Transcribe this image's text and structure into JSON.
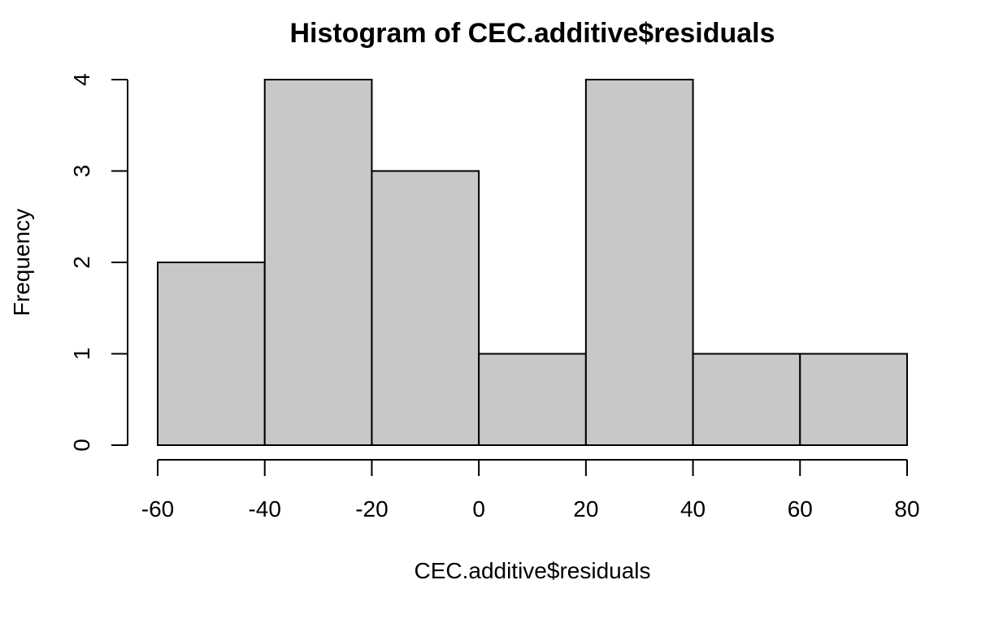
{
  "chart_data": {
    "type": "bar",
    "subtype": "histogram",
    "title": "Histogram of CEC.additive$residuals",
    "xlabel": "CEC.additive$residuals",
    "ylabel": "Frequency",
    "bins": [
      {
        "from": -60,
        "to": -40,
        "count": 2
      },
      {
        "from": -40,
        "to": -20,
        "count": 4
      },
      {
        "from": -20,
        "to": 0,
        "count": 3
      },
      {
        "from": 0,
        "to": 20,
        "count": 1
      },
      {
        "from": 20,
        "to": 40,
        "count": 4
      },
      {
        "from": 40,
        "to": 60,
        "count": 1
      },
      {
        "from": 60,
        "to": 80,
        "count": 1
      }
    ],
    "xlim": [
      -60,
      80
    ],
    "ylim": [
      0,
      4
    ],
    "x_ticks": [
      -60,
      -40,
      -20,
      0,
      20,
      40,
      60,
      80
    ],
    "y_ticks": [
      0,
      1,
      2,
      3,
      4
    ],
    "bar_color": "#c8c8c8",
    "grid": false
  }
}
